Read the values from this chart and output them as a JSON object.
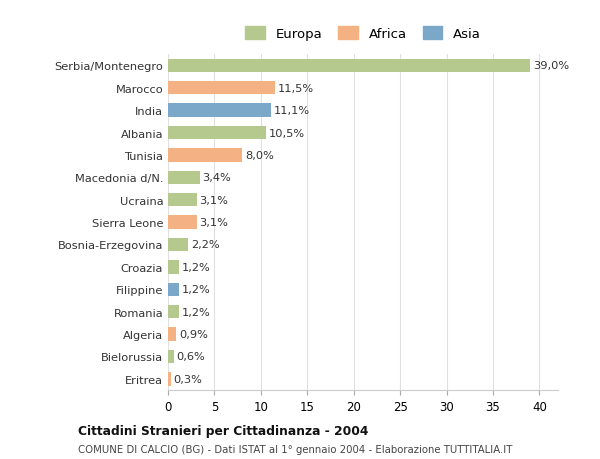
{
  "categories": [
    "Serbia/Montenegro",
    "Marocco",
    "India",
    "Albania",
    "Tunisia",
    "Macedonia d/N.",
    "Ucraina",
    "Sierra Leone",
    "Bosnia-Erzegovina",
    "Croazia",
    "Filippine",
    "Romania",
    "Algeria",
    "Bielorussia",
    "Eritrea"
  ],
  "values": [
    39.0,
    11.5,
    11.1,
    10.5,
    8.0,
    3.4,
    3.1,
    3.1,
    2.2,
    1.2,
    1.2,
    1.2,
    0.9,
    0.6,
    0.3
  ],
  "labels": [
    "39,0%",
    "11,5%",
    "11,1%",
    "10,5%",
    "8,0%",
    "3,4%",
    "3,1%",
    "3,1%",
    "2,2%",
    "1,2%",
    "1,2%",
    "1,2%",
    "0,9%",
    "0,6%",
    "0,3%"
  ],
  "continents": [
    "Europa",
    "Africa",
    "Asia",
    "Europa",
    "Africa",
    "Europa",
    "Europa",
    "Africa",
    "Europa",
    "Europa",
    "Asia",
    "Europa",
    "Africa",
    "Europa",
    "Africa"
  ],
  "continent_colors": {
    "Europa": "#b5c98e",
    "Africa": "#f4b183",
    "Asia": "#7ba7c9"
  },
  "title": "Cittadini Stranieri per Cittadinanza - 2004",
  "subtitle": "COMUNE DI CALCIO (BG) - Dati ISTAT al 1° gennaio 2004 - Elaborazione TUTTITALIA.IT",
  "xlim": [
    0,
    42
  ],
  "xticks": [
    0,
    5,
    10,
    15,
    20,
    25,
    30,
    35,
    40
  ],
  "bar_height": 0.6,
  "background_color": "#ffffff",
  "grid_color": "#e0e0e0"
}
